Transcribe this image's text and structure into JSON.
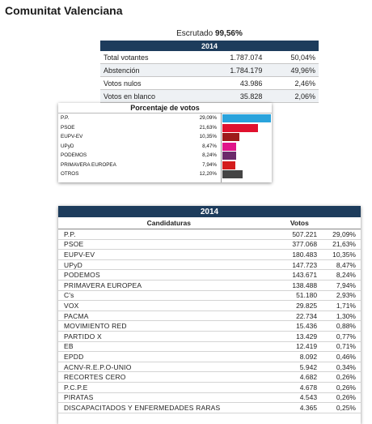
{
  "page": {
    "title": "Comunitat Valenciana"
  },
  "escrutado": {
    "label": "Escrutado",
    "value": "99,56%"
  },
  "summary": {
    "year": "2014",
    "rows": [
      {
        "label": "Total votantes",
        "votes": "1.787.074",
        "pct": "50,04%"
      },
      {
        "label": "Abstención",
        "votes": "1.784.179",
        "pct": "49,96%"
      },
      {
        "label": "Votos nulos",
        "votes": "43.986",
        "pct": "2,46%"
      },
      {
        "label": "Votos en blanco",
        "votes": "35.828",
        "pct": "2,06%"
      }
    ]
  },
  "chart_data": {
    "type": "bar",
    "title": "Porcentaje de votos",
    "categories": [
      "P.P.",
      "PSOE",
      "EUPV-EV",
      "UPyD",
      "PODEMOS",
      "PRIMAVERA EUROPEA",
      "OTROS"
    ],
    "value_labels": [
      "29,09%",
      "21,63%",
      "10,35%",
      "8,47%",
      "8,24%",
      "7,94%",
      "12,20%"
    ],
    "values": [
      29.09,
      21.63,
      10.35,
      8.47,
      8.24,
      7.94,
      12.2
    ],
    "colors": [
      "#2aa3dc",
      "#e0112e",
      "#9e1a1a",
      "#e0158a",
      "#6b2a6b",
      "#d41c1c",
      "#444444"
    ],
    "ylim": [
      0,
      35
    ]
  },
  "results": {
    "year": "2014",
    "headers": {
      "party": "Candidaturas",
      "votes": "Votos"
    },
    "rows": [
      {
        "party": "P.P.",
        "votes": "507.221",
        "pct": "29,09%"
      },
      {
        "party": "PSOE",
        "votes": "377.068",
        "pct": "21,63%"
      },
      {
        "party": "EUPV-EV",
        "votes": "180.483",
        "pct": "10,35%"
      },
      {
        "party": "UPyD",
        "votes": "147.723",
        "pct": "8,47%"
      },
      {
        "party": "PODEMOS",
        "votes": "143.671",
        "pct": "8,24%"
      },
      {
        "party": "PRIMAVERA EUROPEA",
        "votes": "138.488",
        "pct": "7,94%"
      },
      {
        "party": "C's",
        "votes": "51.180",
        "pct": "2,93%"
      },
      {
        "party": "VOX",
        "votes": "29.825",
        "pct": "1,71%"
      },
      {
        "party": "PACMA",
        "votes": "22.734",
        "pct": "1,30%"
      },
      {
        "party": "MOVIMIENTO RED",
        "votes": "15.436",
        "pct": "0,88%"
      },
      {
        "party": "PARTIDO X",
        "votes": "13.429",
        "pct": "0,77%"
      },
      {
        "party": "EB",
        "votes": "12.419",
        "pct": "0,71%"
      },
      {
        "party": "EPDD",
        "votes": "8.092",
        "pct": "0,46%"
      },
      {
        "party": "ACNV-R.E.P.O-UNIO",
        "votes": "5.942",
        "pct": "0,34%"
      },
      {
        "party": "RECORTES CERO",
        "votes": "4.682",
        "pct": "0,26%"
      },
      {
        "party": "P.C.P.E",
        "votes": "4.678",
        "pct": "0,26%"
      },
      {
        "party": "PIRATAS",
        "votes": "4.543",
        "pct": "0,26%"
      },
      {
        "party": "DISCAPACITADOS Y ENFERMEDADES RARAS",
        "votes": "4.365",
        "pct": "0,25%"
      }
    ]
  }
}
